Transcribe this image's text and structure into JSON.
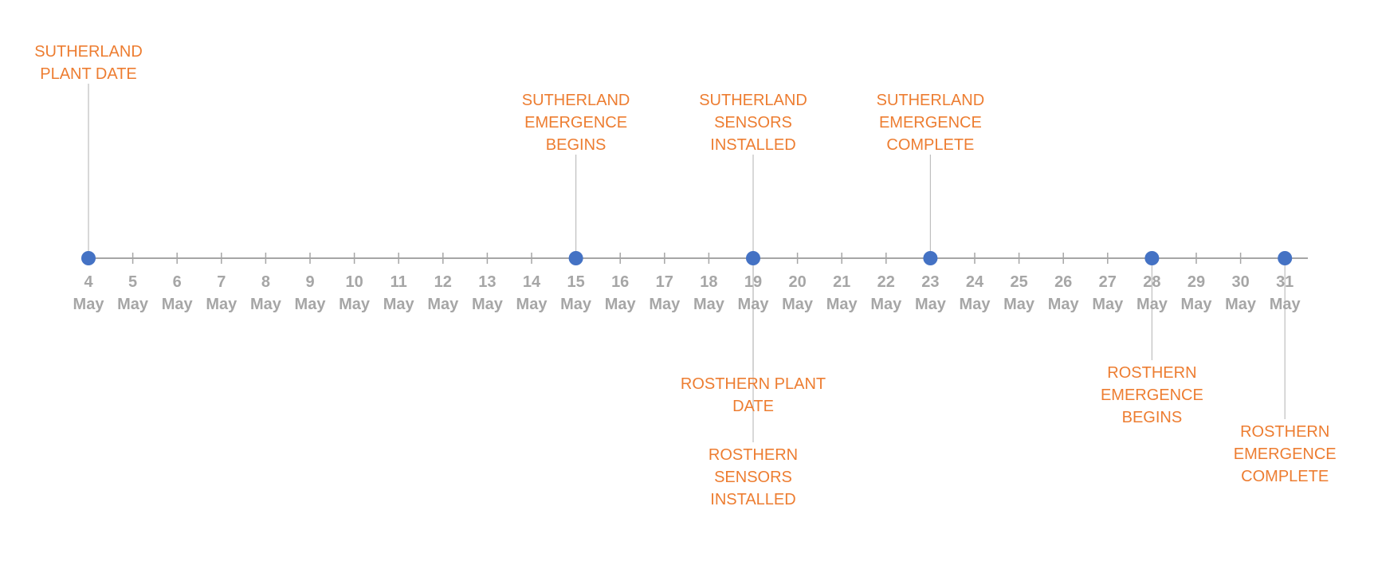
{
  "chart_data": {
    "type": "timeline",
    "title": "",
    "xlabel": "",
    "ylabel": "",
    "x_range": [
      "4 May",
      "31 May"
    ],
    "grid": false,
    "legend": "none",
    "colors": {
      "axis": "#a6a6a6",
      "marker": "#4472c4",
      "connector": "#bfbfbf",
      "event_text": "#ed7d31",
      "tick_text": "#a6a6a6"
    },
    "ticks": [
      {
        "day": "4",
        "month": "May"
      },
      {
        "day": "5",
        "month": "May"
      },
      {
        "day": "6",
        "month": "May"
      },
      {
        "day": "7",
        "month": "May"
      },
      {
        "day": "8",
        "month": "May"
      },
      {
        "day": "9",
        "month": "May"
      },
      {
        "day": "10",
        "month": "May"
      },
      {
        "day": "11",
        "month": "May"
      },
      {
        "day": "12",
        "month": "May"
      },
      {
        "day": "13",
        "month": "May"
      },
      {
        "day": "14",
        "month": "May"
      },
      {
        "day": "15",
        "month": "May"
      },
      {
        "day": "16",
        "month": "May"
      },
      {
        "day": "17",
        "month": "May"
      },
      {
        "day": "18",
        "month": "May"
      },
      {
        "day": "19",
        "month": "May"
      },
      {
        "day": "20",
        "month": "May"
      },
      {
        "day": "21",
        "month": "May"
      },
      {
        "day": "22",
        "month": "May"
      },
      {
        "day": "23",
        "month": "May"
      },
      {
        "day": "24",
        "month": "May"
      },
      {
        "day": "25",
        "month": "May"
      },
      {
        "day": "26",
        "month": "May"
      },
      {
        "day": "27",
        "month": "May"
      },
      {
        "day": "28",
        "month": "May"
      },
      {
        "day": "29",
        "month": "May"
      },
      {
        "day": "30",
        "month": "May"
      },
      {
        "day": "31",
        "month": "May"
      }
    ],
    "events": [
      {
        "date": "4 May",
        "label_lines": [
          "SUTHERLAND",
          "PLANT DATE"
        ],
        "side": "above"
      },
      {
        "date": "15 May",
        "label_lines": [
          "SUTHERLAND",
          "EMERGENCE",
          "BEGINS"
        ],
        "side": "above"
      },
      {
        "date": "19 May",
        "label_lines": [
          "SUTHERLAND",
          "SENSORS",
          "INSTALLED"
        ],
        "side": "above"
      },
      {
        "date": "23 May",
        "label_lines": [
          "SUTHERLAND",
          "EMERGENCE",
          "COMPLETE"
        ],
        "side": "above"
      },
      {
        "date": "19 May",
        "label_lines": [
          "ROSTHERN PLANT",
          "DATE"
        ],
        "side": "below"
      },
      {
        "date": "19 May",
        "label_lines": [
          "ROSTHERN",
          "SENSORS",
          "INSTALLED"
        ],
        "side": "below"
      },
      {
        "date": "28 May",
        "label_lines": [
          "ROSTHERN",
          "EMERGENCE",
          "BEGINS"
        ],
        "side": "below"
      },
      {
        "date": "31 May",
        "label_lines": [
          "ROSTHERN",
          "EMERGENCE",
          "COMPLETE"
        ],
        "side": "below"
      }
    ]
  }
}
